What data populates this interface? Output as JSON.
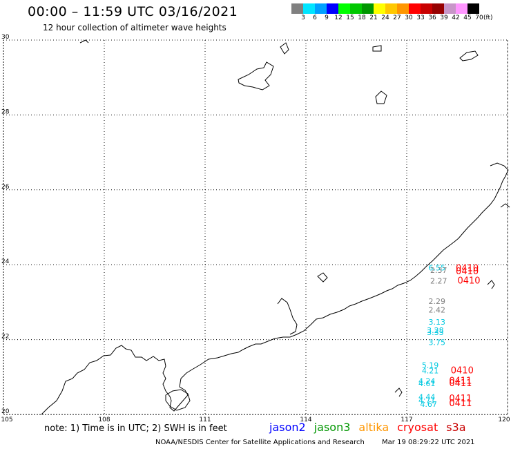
{
  "title": "00:00 – 11:59 UTC 03/16/2021",
  "subtitle": "12 hour collection of altimeter wave heights",
  "colorbar": {
    "labels": [
      "3",
      "6",
      "9",
      "12",
      "15",
      "18",
      "21",
      "24",
      "27",
      "30",
      "33",
      "36",
      "39",
      "42",
      "45",
      "70"
    ],
    "unit": "(ft)",
    "colors": [
      "#808080",
      "#00e5ff",
      "#00a0ff",
      "#0000ff",
      "#00ff00",
      "#00c800",
      "#009600",
      "#ffff00",
      "#ffc800",
      "#ff9600",
      "#ff0000",
      "#c80000",
      "#960000",
      "#c896c8",
      "#ff96ff",
      "#000000"
    ]
  },
  "axes": {
    "x_ticks": [
      "105",
      "108",
      "111",
      "114",
      "117",
      "120"
    ],
    "y_ticks": [
      "20",
      "22",
      "24",
      "26",
      "28",
      "30"
    ],
    "lon_range": [
      105,
      120
    ],
    "lat_range": [
      20,
      30
    ]
  },
  "wave_labels": [
    {
      "text": "6.55",
      "color": "#00c8e0",
      "lon": 117.9,
      "lat": 23.85
    },
    {
      "text": "2.37",
      "color": "#808080",
      "lon": 117.95,
      "lat": 23.78
    },
    {
      "text": "0410",
      "color": "#ff0000",
      "lon": 118.8,
      "lat": 23.83
    },
    {
      "text": "0410",
      "color": "#ff0000",
      "lon": 118.8,
      "lat": 23.75
    },
    {
      "text": "2.27",
      "color": "#808080",
      "lon": 117.95,
      "lat": 23.5
    },
    {
      "text": "0410",
      "color": "#ff0000",
      "lon": 118.85,
      "lat": 23.5
    },
    {
      "text": "2.29",
      "color": "#808080",
      "lon": 117.9,
      "lat": 22.95
    },
    {
      "text": "2.42",
      "color": "#808080",
      "lon": 117.9,
      "lat": 22.72
    },
    {
      "text": "3.13",
      "color": "#00c8e0",
      "lon": 117.9,
      "lat": 22.4
    },
    {
      "text": "3.28",
      "color": "#00c8e0",
      "lon": 117.85,
      "lat": 22.18
    },
    {
      "text": "3.33",
      "color": "#00c8e0",
      "lon": 117.85,
      "lat": 22.12
    },
    {
      "text": "3.75",
      "color": "#00c8e0",
      "lon": 117.9,
      "lat": 21.85
    },
    {
      "text": "5.19",
      "color": "#00c8e0",
      "lon": 117.7,
      "lat": 21.25
    },
    {
      "text": "4.21",
      "color": "#00c8e0",
      "lon": 117.7,
      "lat": 21.1
    },
    {
      "text": "0410",
      "color": "#ff0000",
      "lon": 118.65,
      "lat": 21.1
    },
    {
      "text": "4.24",
      "color": "#00c8e0",
      "lon": 117.6,
      "lat": 20.82
    },
    {
      "text": "4.61",
      "color": "#00c8e0",
      "lon": 117.6,
      "lat": 20.76
    },
    {
      "text": "0411",
      "color": "#ff0000",
      "lon": 118.6,
      "lat": 20.82
    },
    {
      "text": "0411",
      "color": "#ff0000",
      "lon": 118.6,
      "lat": 20.76
    },
    {
      "text": "4.44",
      "color": "#00c8e0",
      "lon": 117.6,
      "lat": 20.4
    },
    {
      "text": "4.71",
      "color": "#00c8e0",
      "lon": 117.6,
      "lat": 20.3
    },
    {
      "text": "4.67",
      "color": "#00c8e0",
      "lon": 117.65,
      "lat": 20.2
    },
    {
      "text": "0411",
      "color": "#ff0000",
      "lon": 118.6,
      "lat": 20.35
    },
    {
      "text": "0411",
      "color": "#ff0000",
      "lon": 118.6,
      "lat": 20.22
    }
  ],
  "note": "note: 1) Time is in UTC; 2) SWH is in feet",
  "satellites": [
    {
      "name": "jason2",
      "color": "#0000ff"
    },
    {
      "name": "jason3",
      "color": "#009600"
    },
    {
      "name": "altika",
      "color": "#ff9600"
    },
    {
      "name": "cryosat",
      "color": "#ff0000"
    },
    {
      "name": "s3a",
      "color": "#c80000"
    }
  ],
  "footer": {
    "org": "NOAA/NESDIS Center for Satellite Applications and Research",
    "timestamp": "Mar 19 08:29:22 UTC 2021"
  }
}
